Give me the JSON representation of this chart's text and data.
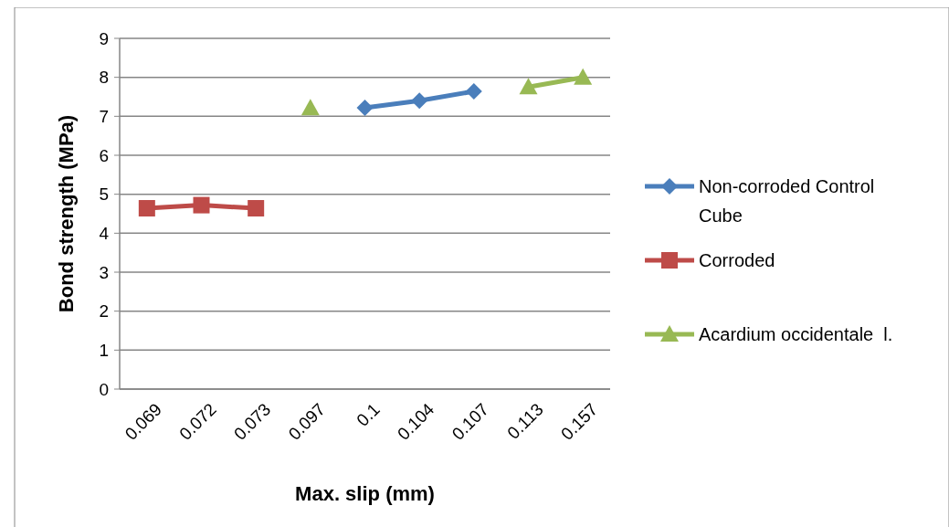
{
  "chart_data": {
    "type": "line",
    "xlabel": "Max. slip (mm)",
    "ylabel": "Bond strength (MPa)",
    "categories": [
      "0.069",
      "0.072",
      "0.073",
      "0.097",
      "0.1",
      "0.104",
      "0.107",
      "0.113",
      "0.157"
    ],
    "series": [
      {
        "name": "Non-corroded Control Cube",
        "color": "#4a7ebb",
        "marker": "diamond",
        "values": [
          null,
          null,
          null,
          null,
          7.22,
          7.4,
          7.64,
          null,
          null
        ]
      },
      {
        "name": "Corroded",
        "color": "#be4b48",
        "marker": "square",
        "values": [
          4.64,
          4.72,
          4.64,
          null,
          null,
          null,
          null,
          null,
          null
        ]
      },
      {
        "name": "Acardium occidentale  l.",
        "color": "#98b954",
        "marker": "triangle",
        "values": [
          null,
          null,
          null,
          7.21,
          null,
          null,
          null,
          7.75,
          8.0
        ]
      }
    ],
    "ylim": [
      0,
      9
    ],
    "yticks": [
      0,
      1,
      2,
      3,
      4,
      5,
      6,
      7,
      8,
      9
    ],
    "grid": "y",
    "legend": "right"
  }
}
